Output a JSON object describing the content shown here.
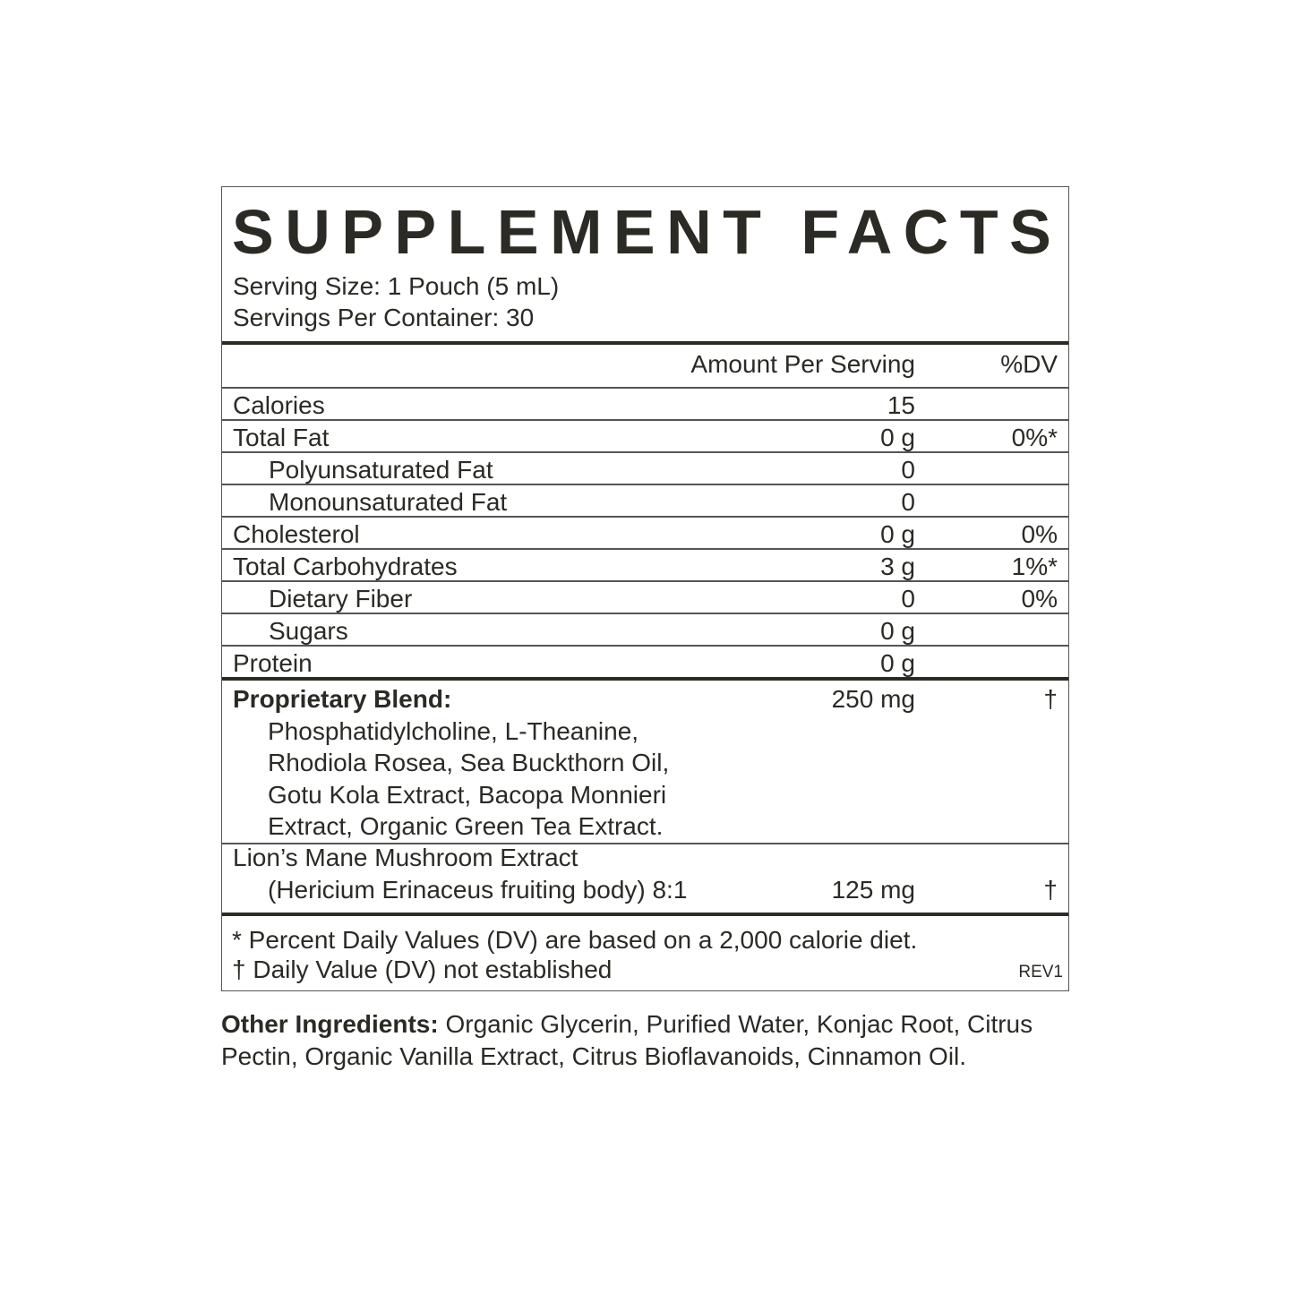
{
  "title": "SUPPLEMENT FACTS",
  "serving_size": "Serving Size: 1 Pouch (5 mL)",
  "servings_per_container": "Servings Per Container: 30",
  "header": {
    "amount": "Amount Per Serving",
    "dv": "%DV"
  },
  "rows": [
    {
      "label": "Calories",
      "amount": "15",
      "dv": ""
    },
    {
      "label": "Total Fat",
      "amount": "0 g",
      "dv": "0%*"
    },
    {
      "label": "Polyunsaturated Fat",
      "amount": "0",
      "dv": ""
    },
    {
      "label": "Monounsaturated Fat",
      "amount": "0",
      "dv": ""
    },
    {
      "label": "Cholesterol",
      "amount": "0 g",
      "dv": "0%"
    },
    {
      "label": "Total Carbohydrates",
      "amount": "3 g",
      "dv": "1%*"
    },
    {
      "label": "Dietary Fiber",
      "amount": "0",
      "dv": "0%"
    },
    {
      "label": "Sugars",
      "amount": "0 g",
      "dv": ""
    },
    {
      "label": "Protein",
      "amount": "0 g",
      "dv": ""
    }
  ],
  "blend": {
    "label": "Proprietary Blend:",
    "amount": "250 mg",
    "dv": "†",
    "ingredients": [
      "Phosphatidylcholine, L-Theanine,",
      "Rhodiola Rosea, Sea Buckthorn Oil,",
      "Gotu Kola Extract, Bacopa Monnieri",
      "Extract, Organic Green Tea Extract."
    ]
  },
  "lions_mane": {
    "label": "Lion’s Mane Mushroom Extract",
    "sub": "(Hericium Erinaceus fruiting body) 8:1",
    "amount": "125 mg",
    "dv": "†"
  },
  "footnotes": [
    "* Percent Daily Values (DV) are based on a 2,000 calorie diet.",
    "† Daily Value (DV) not established"
  ],
  "revision": "REV1",
  "other_ingredients": {
    "label": "Other Ingredients:",
    "text": " Organic Glycerin, Purified Water, Konjac Root, Citrus Pectin, Organic Vanilla Extract, Citrus Bioflavanoids, Cinnamon Oil."
  }
}
